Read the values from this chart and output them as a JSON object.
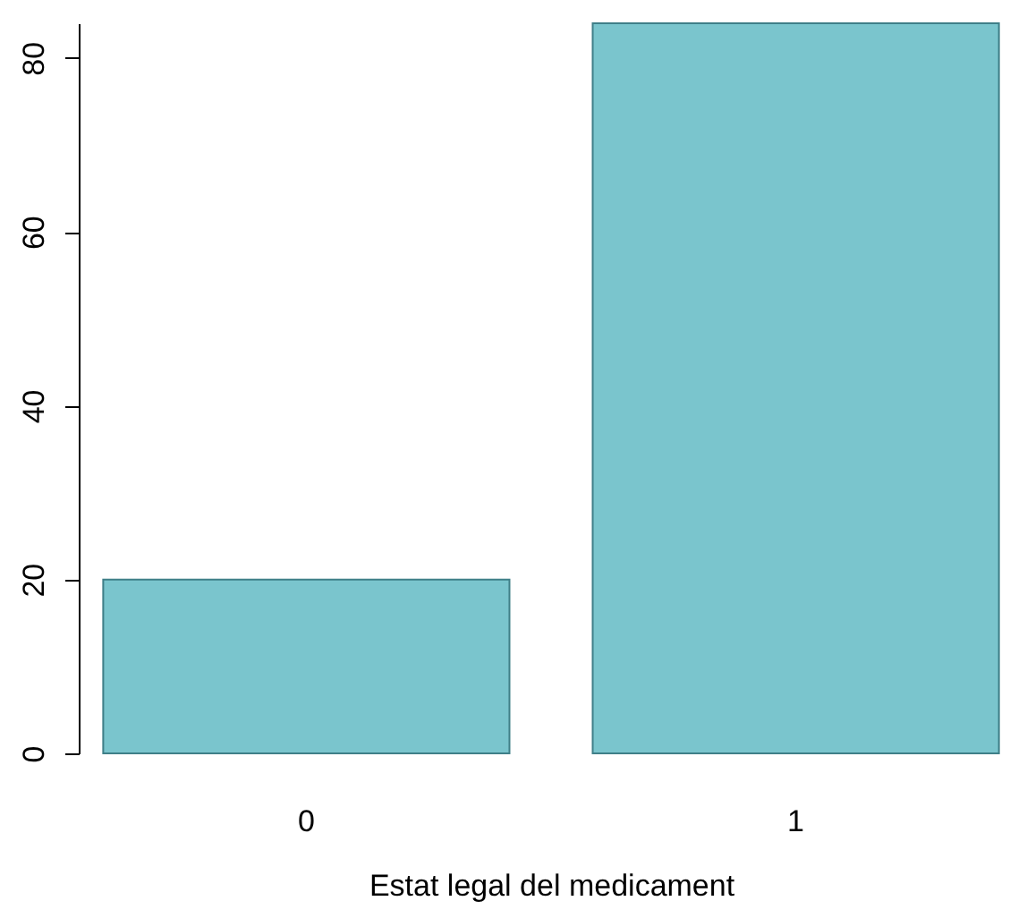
{
  "chart_data": {
    "type": "bar",
    "xlabel": "Estat legal del medicament",
    "categories": [
      "0",
      "1"
    ],
    "values": [
      20,
      84
    ],
    "color": "#7ac5cd",
    "ylim": [
      0,
      84
    ],
    "yticks": [
      0,
      20,
      40,
      60,
      80
    ],
    "grid": false
  }
}
